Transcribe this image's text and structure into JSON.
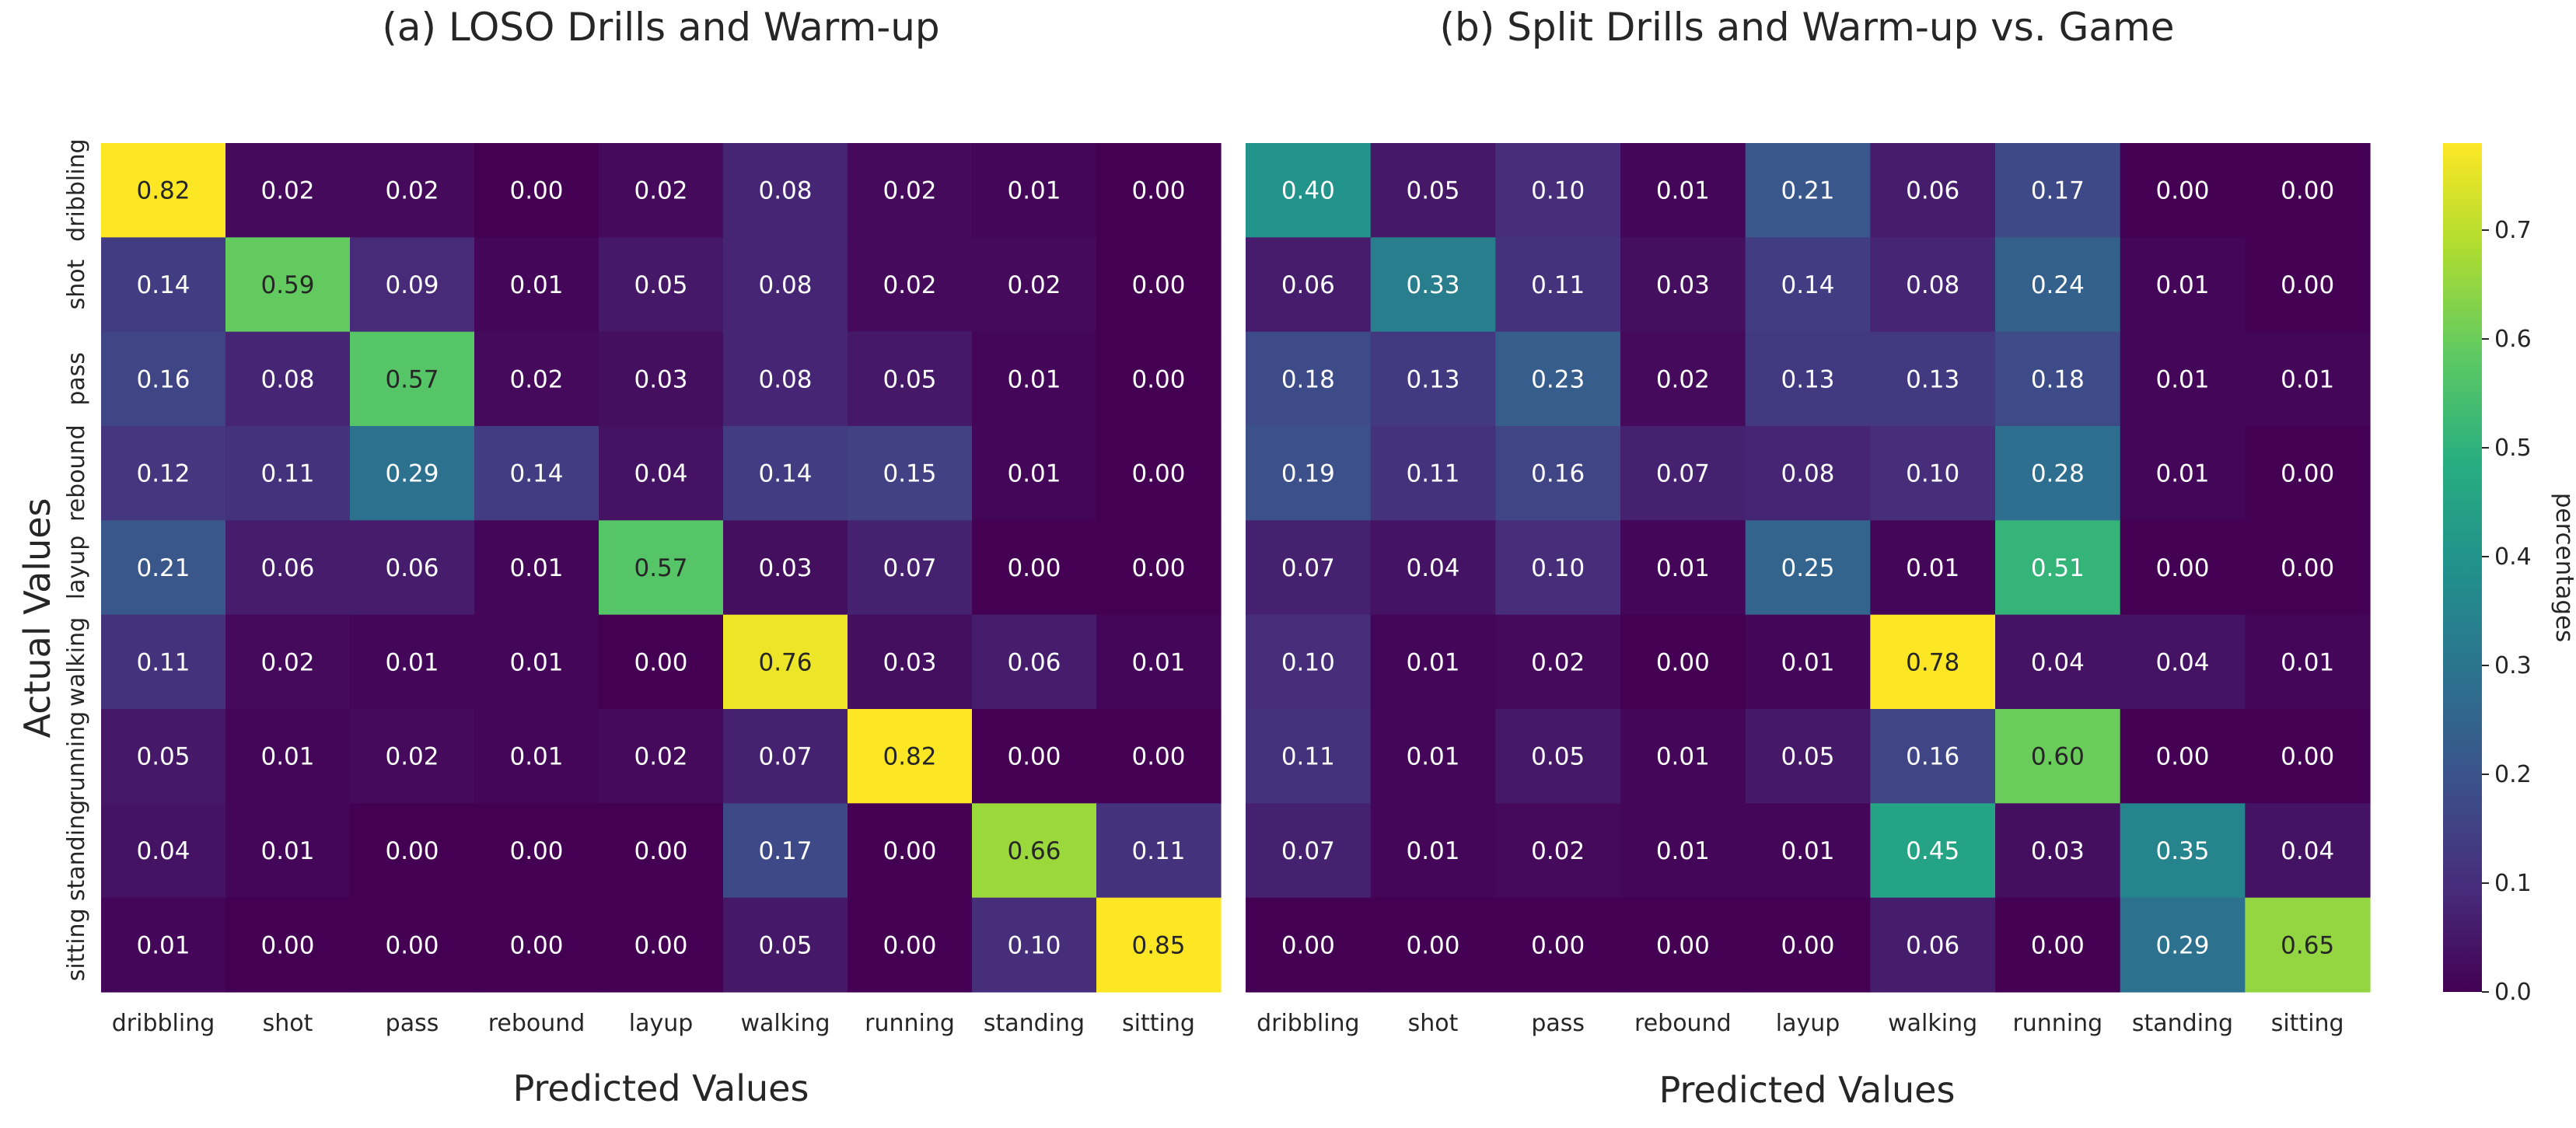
{
  "chart_data": [
    {
      "type": "heatmap",
      "title": "(a) LOSO Drills and Warm-up",
      "xlabel": "Predicted Values",
      "ylabel": "Actual Values",
      "x_categories": [
        "dribbling",
        "shot",
        "pass",
        "rebound",
        "layup",
        "walking",
        "running",
        "standing",
        "sitting"
      ],
      "y_categories": [
        "dribbling",
        "shot",
        "pass",
        "rebound",
        "layup",
        "walking",
        "running",
        "standing",
        "sitting"
      ],
      "values": [
        [
          0.82,
          0.02,
          0.02,
          0.0,
          0.02,
          0.08,
          0.02,
          0.01,
          0.0
        ],
        [
          0.14,
          0.59,
          0.09,
          0.01,
          0.05,
          0.08,
          0.02,
          0.02,
          0.0
        ],
        [
          0.16,
          0.08,
          0.57,
          0.02,
          0.03,
          0.08,
          0.05,
          0.01,
          0.0
        ],
        [
          0.12,
          0.11,
          0.29,
          0.14,
          0.04,
          0.14,
          0.15,
          0.01,
          0.0
        ],
        [
          0.21,
          0.06,
          0.06,
          0.01,
          0.57,
          0.03,
          0.07,
          0.0,
          0.0
        ],
        [
          0.11,
          0.02,
          0.01,
          0.01,
          0.0,
          0.76,
          0.03,
          0.06,
          0.01
        ],
        [
          0.05,
          0.01,
          0.02,
          0.01,
          0.02,
          0.07,
          0.82,
          0.0,
          0.0
        ],
        [
          0.04,
          0.01,
          0.0,
          0.0,
          0.0,
          0.17,
          0.0,
          0.66,
          0.11
        ],
        [
          0.01,
          0.0,
          0.0,
          0.0,
          0.0,
          0.05,
          0.0,
          0.1,
          0.85
        ]
      ]
    },
    {
      "type": "heatmap",
      "title": "(b) Split Drills and Warm-up vs. Game",
      "xlabel": "Predicted Values",
      "ylabel": "",
      "x_categories": [
        "dribbling",
        "shot",
        "pass",
        "rebound",
        "layup",
        "walking",
        "running",
        "standing",
        "sitting"
      ],
      "y_categories": [
        "dribbling",
        "shot",
        "pass",
        "rebound",
        "layup",
        "walking",
        "running",
        "standing",
        "sitting"
      ],
      "values": [
        [
          0.4,
          0.05,
          0.1,
          0.01,
          0.21,
          0.06,
          0.17,
          0.0,
          0.0
        ],
        [
          0.06,
          0.33,
          0.11,
          0.03,
          0.14,
          0.08,
          0.24,
          0.01,
          0.0
        ],
        [
          0.18,
          0.13,
          0.23,
          0.02,
          0.13,
          0.13,
          0.18,
          0.01,
          0.01
        ],
        [
          0.19,
          0.11,
          0.16,
          0.07,
          0.08,
          0.1,
          0.28,
          0.01,
          0.0
        ],
        [
          0.07,
          0.04,
          0.1,
          0.01,
          0.25,
          0.01,
          0.51,
          0.0,
          0.0
        ],
        [
          0.1,
          0.01,
          0.02,
          0.0,
          0.01,
          0.78,
          0.04,
          0.04,
          0.01
        ],
        [
          0.11,
          0.01,
          0.05,
          0.01,
          0.05,
          0.16,
          0.6,
          0.0,
          0.0
        ],
        [
          0.07,
          0.01,
          0.02,
          0.01,
          0.01,
          0.45,
          0.03,
          0.35,
          0.04
        ],
        [
          0.0,
          0.0,
          0.0,
          0.0,
          0.0,
          0.06,
          0.0,
          0.29,
          0.65
        ]
      ]
    }
  ],
  "colorbar": {
    "label": "percentages",
    "colormap": "viridis",
    "vmin": 0.0,
    "vmax": 0.78,
    "ticks": [
      0.0,
      0.1,
      0.2,
      0.3,
      0.4,
      0.5,
      0.6,
      0.7
    ],
    "tick_labels": [
      "0.0",
      "0.1",
      "0.2",
      "0.3",
      "0.4",
      "0.5",
      "0.6",
      "0.7"
    ]
  }
}
